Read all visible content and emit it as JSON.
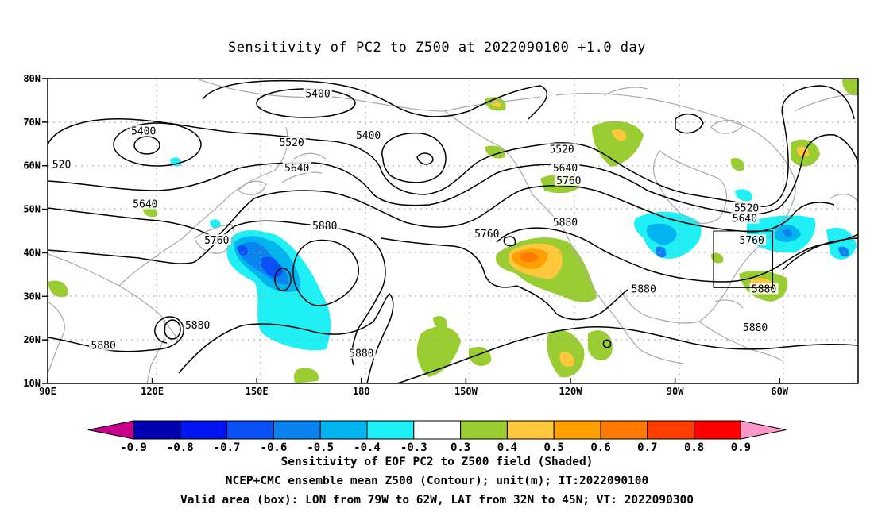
{
  "title": "Sensitivity of PC2 to Z500 at 2022090100 +1.0 day",
  "map": {
    "lat_labels": [
      "80N",
      "70N",
      "60N",
      "50N",
      "40N",
      "30N",
      "20N",
      "10N"
    ],
    "lon_labels": [
      "90E",
      "120E",
      "150E",
      "180",
      "150W",
      "120W",
      "90W",
      "60W"
    ],
    "contour_labels": [
      {
        "text": "5400",
        "lon": 167.5,
        "lat": 76.4
      },
      {
        "text": "5400",
        "lon": 117.5,
        "lat": 67.9
      },
      {
        "text": "5400",
        "lon": 182,
        "lat": 66.9
      },
      {
        "text": "5520",
        "lon": 160,
        "lat": 65.2
      },
      {
        "text": "5520",
        "lon": -122.5,
        "lat": 63.7
      },
      {
        "text": "520",
        "lon": 94,
        "lat": 60.2
      },
      {
        "text": "5640",
        "lon": 161.5,
        "lat": 59.4
      },
      {
        "text": "5640",
        "lon": -121.5,
        "lat": 59.4
      },
      {
        "text": "5760",
        "lon": -120.5,
        "lat": 56.5
      },
      {
        "text": "5640",
        "lon": 118,
        "lat": 51.1
      },
      {
        "text": "5520",
        "lon": -69.5,
        "lat": 50.2
      },
      {
        "text": "5640",
        "lon": -70,
        "lat": 47.8
      },
      {
        "text": "5880",
        "lon": -121.5,
        "lat": 46.9
      },
      {
        "text": "5880",
        "lon": 169.5,
        "lat": 46.1
      },
      {
        "text": "5760",
        "lon": -144,
        "lat": 44.3
      },
      {
        "text": "5760",
        "lon": 138.5,
        "lat": 42.8
      },
      {
        "text": "5760",
        "lon": -68,
        "lat": 42.8
      },
      {
        "text": "5880",
        "lon": -99,
        "lat": 31.6
      },
      {
        "text": "5880",
        "lon": -64.5,
        "lat": 31.6
      },
      {
        "text": "5880",
        "lon": 133,
        "lat": 23.3
      },
      {
        "text": "5880",
        "lon": -67,
        "lat": 22.8
      },
      {
        "text": "5880",
        "lon": 106,
        "lat": 18.7
      },
      {
        "text": "5880",
        "lon": 180,
        "lat": 16.8
      }
    ],
    "valid_box": {
      "lon_min": -79,
      "lon_max": -62,
      "lat_min": 32,
      "lat_max": 45
    }
  },
  "colorbar": {
    "labels": [
      "-0.9",
      "-0.8",
      "-0.7",
      "-0.6",
      "-0.5",
      "-0.4",
      "-0.3",
      "0.3",
      "0.4",
      "0.5",
      "0.6",
      "0.7",
      "0.8",
      "0.9"
    ],
    "colors": [
      "#0000b0",
      "#0014f0",
      "#0a50f5",
      "#0a82f0",
      "#00b4f0",
      "#1ef0f5",
      "#ffffff",
      "#9acd32",
      "#ffc83c",
      "#ffa000",
      "#ff7800",
      "#ff3c00",
      "#ff0000"
    ],
    "left_tip_color": "#c8008c",
    "right_tip_color": "#ff96c8"
  },
  "captions": {
    "line1": "Sensitivity of EOF PC2 to Z500 field (Shaded)",
    "line2": "NCEP+CMC ensemble mean Z500 (Contour); unit(m); IT:2022090100",
    "line3": "Valid area (box): LON from 79W to 62W, LAT from 32N to 45N; VT: 2022090300"
  }
}
